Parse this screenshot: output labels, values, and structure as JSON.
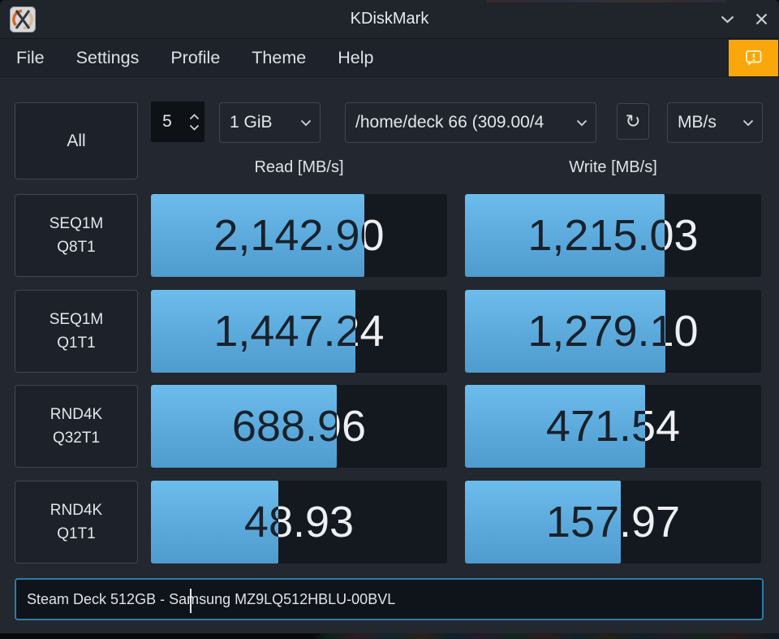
{
  "window": {
    "title": "KDiskMark"
  },
  "menubar": {
    "items": [
      "File",
      "Settings",
      "Profile",
      "Theme",
      "Help"
    ]
  },
  "toolbar": {
    "all_label": "All",
    "loop_count": "5",
    "test_size": "1 GiB",
    "target": "/home/deck 66 (309.00/4",
    "unit": "MB/s"
  },
  "headers": {
    "read": "Read [MB/s]",
    "write": "Write [MB/s]"
  },
  "chart_data": {
    "type": "bar",
    "unit": "MB/s",
    "categories": [
      "SEQ1M Q8T1",
      "SEQ1M Q1T1",
      "RND4K Q32T1",
      "RND4K Q1T1"
    ],
    "series": [
      {
        "name": "Read",
        "values": [
          2142.9,
          1447.24,
          688.96,
          48.93
        ]
      },
      {
        "name": "Write",
        "values": [
          1215.03,
          1279.1,
          471.54,
          157.97
        ]
      }
    ],
    "bar_scale": "logarithmic"
  },
  "results": [
    {
      "label1": "SEQ1M",
      "label2": "Q8T1",
      "read": "2,142.90",
      "write": "1,215.03",
      "read_pct": "72",
      "write_pct": "67.4"
    },
    {
      "label1": "SEQ1M",
      "label2": "Q1T1",
      "read": "1,447.24",
      "write": "1,279.10",
      "read_pct": "69",
      "write_pct": "67.8"
    },
    {
      "label1": "RND4K",
      "label2": "Q32T1",
      "read": "688.96",
      "write": "471.54",
      "read_pct": "62.7",
      "write_pct": "60.8"
    },
    {
      "label1": "RND4K",
      "label2": "Q1T1",
      "read": "48.93",
      "write": "157.97",
      "read_pct": "43",
      "write_pct": "52.6"
    }
  ],
  "footer": {
    "description": "Steam Deck 512GB - Samsung MZ9LQ512HBLU-00BVL"
  },
  "colors": {
    "accent_orange": "#f9a70b",
    "bar_top": "#6cbcec",
    "bar_bottom": "#4f9bcd",
    "focus_border": "#2d7ba6",
    "cell_bg": "#14181f",
    "window_bg": "#23272f"
  }
}
